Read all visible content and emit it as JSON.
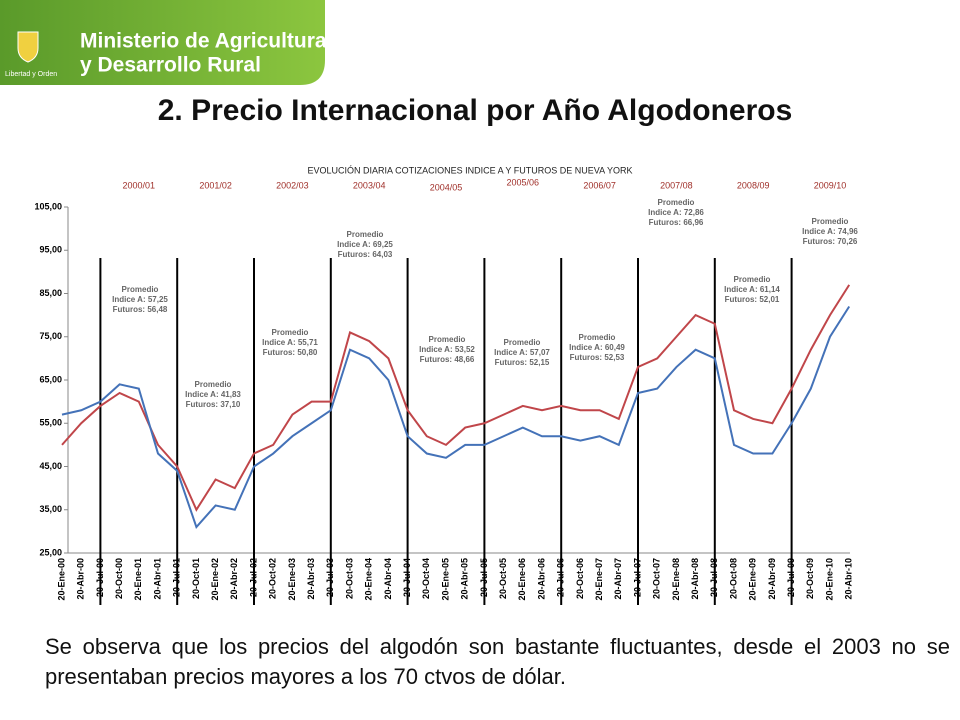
{
  "header": {
    "logo_line1": "Ministerio de Agricultura",
    "logo_line2": "y Desarrollo Rural",
    "motto": "Libertad y Orden",
    "title": "2. Precio Internacional por Año Algodoneros"
  },
  "body_text": "Se observa que los precios del algodón son bastante fluctuantes, desde el 2003 no se presentaban precios mayores a los 70 ctvos de dólar.",
  "chart_data": {
    "type": "line",
    "title": "EVOLUCIÓN DIARIA COTIZACIONES INDICE A Y FUTUROS DE NUEVA YORK",
    "categories": [
      "20-Ene-00",
      "20-Abr-00",
      "20-Jul-00",
      "20-Oct-00",
      "20-Ene-01",
      "20-Abr-01",
      "20-Jul-01",
      "20-Oct-01",
      "20-Ene-02",
      "20-Abr-02",
      "20-Jul-02",
      "20-Oct-02",
      "20-Ene-03",
      "20-Abr-03",
      "20-Jul-03",
      "20-Oct-03",
      "20-Ene-04",
      "20-Abr-04",
      "20-Jul-04",
      "20-Oct-04",
      "20-Ene-05",
      "20-Abr-05",
      "20-Jul-05",
      "20-Oct-05",
      "20-Ene-06",
      "20-Abr-06",
      "20-Jul-06",
      "20-Oct-06",
      "20-Ene-07",
      "20-Abr-07",
      "20-Jul-07",
      "20-Oct-07",
      "20-Ene-08",
      "20-Abr-08",
      "20-Jul-08",
      "20-Oct-08",
      "20-Ene-09",
      "20-Abr-09",
      "20-Jul-09",
      "20-Oct-09",
      "20-Ene-10",
      "20-Abr-10"
    ],
    "series": [
      {
        "color": "#c0464a",
        "values": [
          50,
          55,
          59,
          62,
          60,
          50,
          45,
          35,
          42,
          40,
          48,
          50,
          57,
          60,
          60,
          76,
          74,
          70,
          58,
          52,
          50,
          54,
          55,
          57,
          59,
          58,
          59,
          58,
          58,
          56,
          68,
          70,
          75,
          80,
          78,
          58,
          56,
          55,
          63,
          72,
          80,
          87
        ]
      },
      {
        "color": "#4472b8",
        "values": [
          57,
          58,
          60,
          64,
          63,
          48,
          44,
          31,
          36,
          35,
          45,
          48,
          52,
          55,
          58,
          72,
          70,
          65,
          52,
          48,
          47,
          50,
          50,
          52,
          54,
          52,
          52,
          51,
          52,
          50,
          62,
          63,
          68,
          72,
          70,
          50,
          48,
          48,
          55,
          63,
          75,
          82
        ]
      }
    ],
    "ylim": [
      25,
      105
    ],
    "yticks": [
      {
        "value": 25,
        "label": "25,00"
      },
      {
        "value": 35,
        "label": "35,00"
      },
      {
        "value": 45,
        "label": "45,00"
      },
      {
        "value": 55,
        "label": "55,00"
      },
      {
        "value": 65,
        "label": "65,00"
      },
      {
        "value": 75,
        "label": "75,00"
      },
      {
        "value": 85,
        "label": "85,00"
      },
      {
        "value": 95,
        "label": "95,00"
      },
      {
        "value": 105,
        "label": "105,00"
      }
    ],
    "seasons": [
      {
        "label": "2000/01",
        "note": [
          "Promedio",
          "Indice A: 57,25",
          "Futuros: 56,48"
        ]
      },
      {
        "label": "2001/02",
        "note": [
          "Promedio",
          "Indice A: 41,83",
          "Futuros: 37,10"
        ]
      },
      {
        "label": "2002/03",
        "note": [
          "Promedio",
          "Indice A: 55,71",
          "Futuros: 50,80"
        ]
      },
      {
        "label": "2003/04",
        "note": [
          "Promedio",
          "Indice A: 69,25",
          "Futuros: 64,03"
        ]
      },
      {
        "label": "2004/05",
        "note": [
          "Promedio",
          "Indice A: 53,52",
          "Futuros: 48,66"
        ]
      },
      {
        "label": "2005/06",
        "note": [
          "Promedio",
          "Indice A: 57,07",
          "Futuros: 52,15"
        ]
      },
      {
        "label": "2006/07",
        "note": [
          "Promedio",
          "Indice A: 60,49",
          "Futuros: 52,53"
        ]
      },
      {
        "label": "2007/08",
        "note": [
          "Promedio",
          "Indice A: 72,86",
          "Futuros: 66,96"
        ]
      },
      {
        "label": "2008/09",
        "note": [
          "Promedio",
          "Indice A: 61,14",
          "Futuros: 52,01"
        ]
      },
      {
        "label": "2009/10",
        "note": [
          "Promedio",
          "Indice A: 74,96",
          "Futuros: 70,26"
        ]
      }
    ]
  }
}
